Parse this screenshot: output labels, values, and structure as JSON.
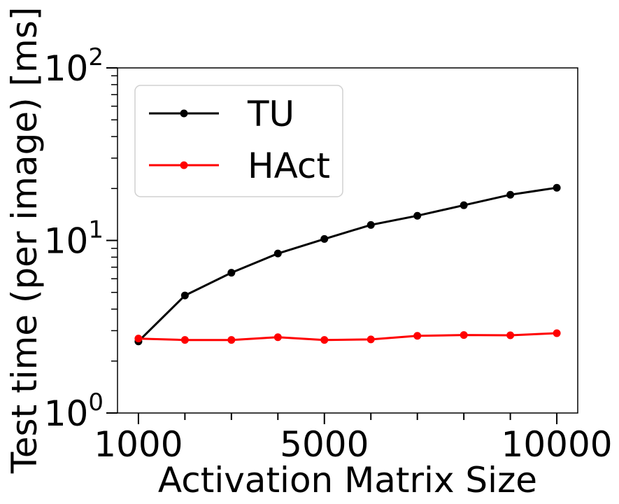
{
  "chart_data": {
    "type": "line",
    "title": "",
    "xlabel": "Activation Matrix Size",
    "ylabel": "Test time (per image) [ms]",
    "yscale": "log",
    "xlim": [
      550,
      10450
    ],
    "ylim": [
      1,
      100
    ],
    "x": [
      1000,
      2000,
      3000,
      4000,
      5000,
      6000,
      7000,
      8000,
      9000,
      10000
    ],
    "x_ticks": [
      1000,
      2000,
      3000,
      4000,
      5000,
      6000,
      7000,
      8000,
      9000,
      10000
    ],
    "x_tick_labels": [
      {
        "value": 1000,
        "label": "1000"
      },
      {
        "value": 5000,
        "label": "5000"
      },
      {
        "value": 10000,
        "label": "10000"
      }
    ],
    "y_tick_labels": [
      {
        "value": 1,
        "base": "10",
        "exp": "0"
      },
      {
        "value": 10,
        "base": "10",
        "exp": "1"
      },
      {
        "value": 100,
        "base": "10",
        "exp": "2"
      }
    ],
    "legend_position": "top-left",
    "grid": false,
    "series": [
      {
        "name": "TU",
        "color": "#000000",
        "values": [
          2.6,
          4.8,
          6.5,
          8.4,
          10.2,
          12.3,
          13.9,
          16.0,
          18.4,
          20.2
        ]
      },
      {
        "name": "HAct",
        "color": "#ff0000",
        "values": [
          2.7,
          2.65,
          2.65,
          2.75,
          2.65,
          2.67,
          2.8,
          2.83,
          2.82,
          2.9
        ]
      }
    ]
  }
}
